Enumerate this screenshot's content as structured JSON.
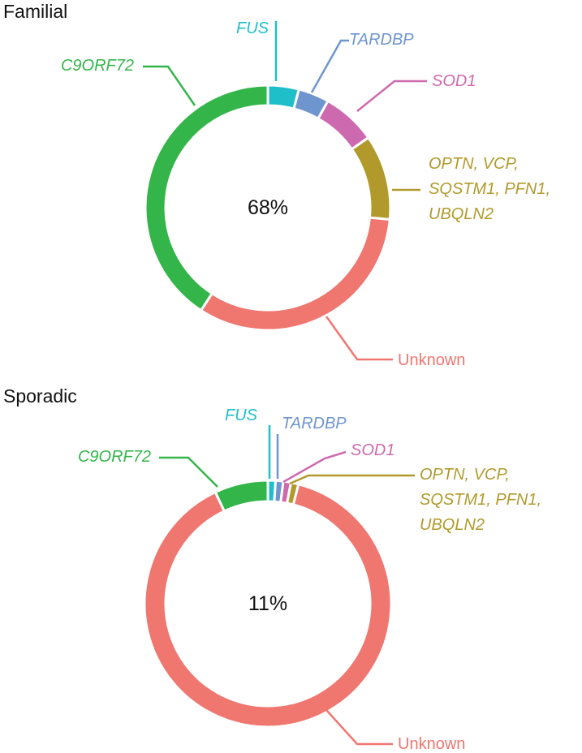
{
  "chart_data": [
    {
      "type": "pie",
      "variant": "donut",
      "title": "Familial",
      "center_label": "68%",
      "slices": [
        {
          "label": "FUS",
          "value": 4,
          "color": "#1fbfc9",
          "italic": true
        },
        {
          "label": "TARDBP",
          "value": 4,
          "color": "#6f95cf",
          "italic": true
        },
        {
          "label": "SOD1",
          "value": 7,
          "color": "#cd6aaf",
          "italic": true
        },
        {
          "label": "OPTN, VCP, SQSTM1, PFN1, UBQLN2",
          "label_lines": [
            "OPTN, VCP,",
            "SQSTM1, PFN1,",
            "UBQLN2"
          ],
          "value": 11,
          "color": "#b19a2b",
          "italic": true
        },
        {
          "label": "Unknown",
          "value": 32,
          "color": "#f07670",
          "italic": false
        },
        {
          "label": "C9ORF72",
          "value": 40,
          "color": "#34b54a",
          "italic": true
        }
      ]
    },
    {
      "type": "pie",
      "variant": "donut",
      "title": "Sporadic",
      "center_label": "11%",
      "slices": [
        {
          "label": "FUS",
          "value": 1,
          "color": "#1fbfc9",
          "italic": true
        },
        {
          "label": "TARDBP",
          "value": 1,
          "color": "#6f95cf",
          "italic": true
        },
        {
          "label": "SOD1",
          "value": 1,
          "color": "#cd6aaf",
          "italic": true
        },
        {
          "label": "OPTN, VCP, SQSTM1, PFN1, UBQLN2",
          "label_lines": [
            "OPTN, VCP,",
            "SQSTM1, PFN1,",
            "UBQLN2"
          ],
          "value": 1,
          "color": "#b19a2b",
          "italic": true
        },
        {
          "label": "Unknown",
          "value": 89,
          "color": "#f07670",
          "italic": false
        },
        {
          "label": "C9ORF72",
          "value": 7,
          "color": "#34b54a",
          "italic": true
        }
      ]
    }
  ]
}
